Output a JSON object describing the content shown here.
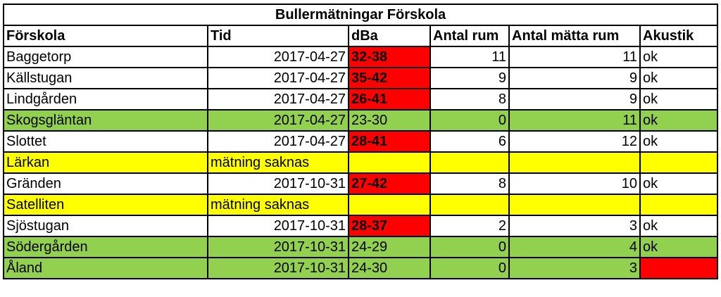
{
  "title": "Bullermätningar Förskola",
  "headers": [
    "Förskola",
    "Tid",
    "dBa",
    "Antal rum",
    "Antal mätta rum",
    "Akustik"
  ],
  "rows": [
    {
      "forskola": "Baggetorp",
      "tid": "2017-04-27",
      "dba": "32-38",
      "antal_rum": "11",
      "antal_matta_rum": "11",
      "akustik": "ok",
      "row_color": "white",
      "dba_color": "red",
      "akustik_color": "white"
    },
    {
      "forskola": "Källstugan",
      "tid": "2017-04-27",
      "dba": "35-42",
      "antal_rum": "9",
      "antal_matta_rum": "9",
      "akustik": "ok",
      "row_color": "white",
      "dba_color": "red",
      "akustik_color": "white"
    },
    {
      "forskola": "Lindgården",
      "tid": "2017-04-27",
      "dba": "26-41",
      "antal_rum": "8",
      "antal_matta_rum": "9",
      "akustik": "ok",
      "row_color": "white",
      "dba_color": "red",
      "akustik_color": "white"
    },
    {
      "forskola": "Skogsgläntan",
      "tid": "2017-04-27",
      "dba": "23-30",
      "antal_rum": "0",
      "antal_matta_rum": "11",
      "akustik": "ok",
      "row_color": "green",
      "dba_color": "green",
      "akustik_color": "green"
    },
    {
      "forskola": "Slottet",
      "tid": "2017-04-27",
      "dba": "28-41",
      "antal_rum": "6",
      "antal_matta_rum": "12",
      "akustik": "ok",
      "row_color": "white",
      "dba_color": "red",
      "akustik_color": "white"
    },
    {
      "forskola": "Lärkan",
      "tid": "mätning saknas",
      "dba": "",
      "antal_rum": "",
      "antal_matta_rum": "",
      "akustik": "",
      "row_color": "yellow",
      "dba_color": "yellow",
      "akustik_color": "yellow"
    },
    {
      "forskola": "Gränden",
      "tid": "2017-10-31",
      "dba": "27-42",
      "antal_rum": "8",
      "antal_matta_rum": "10",
      "akustik": "ok",
      "row_color": "white",
      "dba_color": "red",
      "akustik_color": "white"
    },
    {
      "forskola": "Satelliten",
      "tid": "mätning saknas",
      "dba": "",
      "antal_rum": "",
      "antal_matta_rum": "",
      "akustik": "",
      "row_color": "yellow",
      "dba_color": "yellow",
      "akustik_color": "yellow"
    },
    {
      "forskola": "Sjöstugan",
      "tid": "2017-10-31",
      "dba": "28-37",
      "antal_rum": "2",
      "antal_matta_rum": "3",
      "akustik": "ok",
      "row_color": "white",
      "dba_color": "red",
      "akustik_color": "white"
    },
    {
      "forskola": "Södergården",
      "tid": "2017-10-31",
      "dba": "24-29",
      "antal_rum": "0",
      "antal_matta_rum": "4",
      "akustik": "ok",
      "row_color": "green",
      "dba_color": "green",
      "akustik_color": "green"
    },
    {
      "forskola": "Åland",
      "tid": "2017-10-31",
      "dba": "24-30",
      "antal_rum": "0",
      "antal_matta_rum": "3",
      "akustik": "",
      "row_color": "green",
      "dba_color": "green",
      "akustik_color": "red"
    }
  ],
  "colors": {
    "green": "#92d050",
    "yellow": "#ffff00",
    "red": "#ff0000",
    "white": "#ffffff"
  }
}
